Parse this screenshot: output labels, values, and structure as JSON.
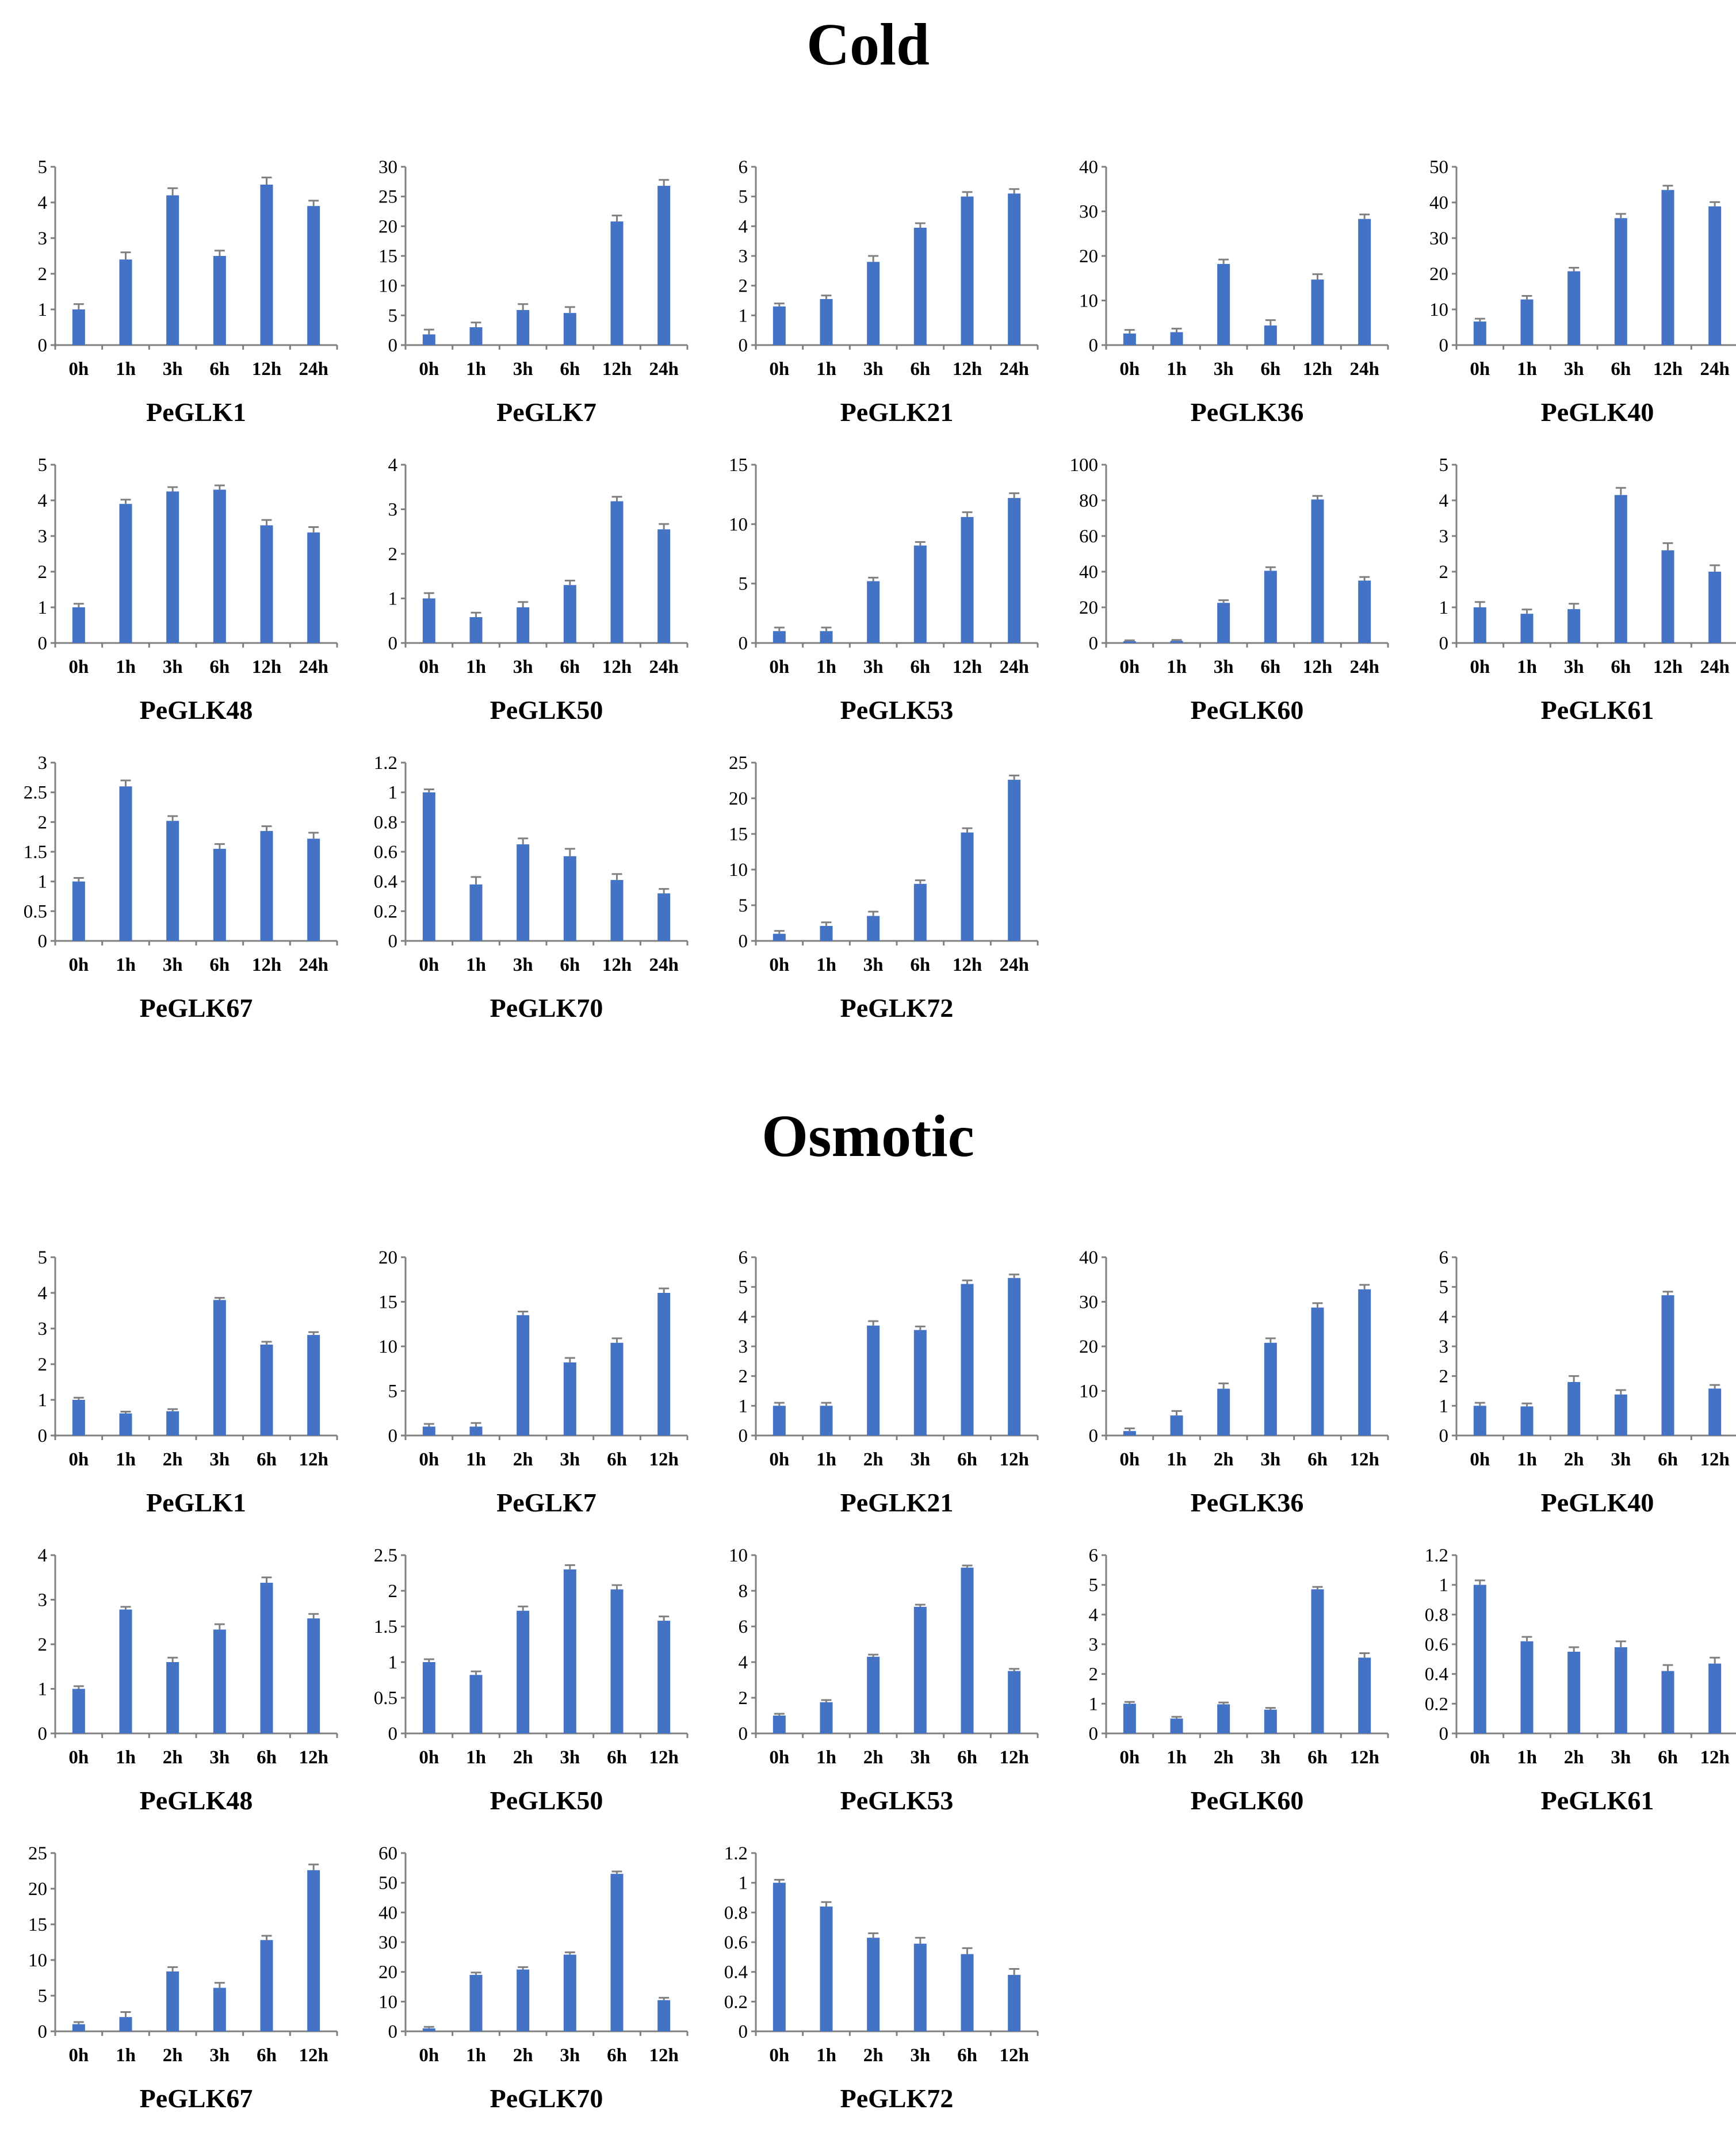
{
  "sections": [
    {
      "title": "Cold"
    },
    {
      "title": "Osmotic"
    }
  ],
  "colors": {
    "bar": "#4472C4",
    "axis": "#808080",
    "error": "#808080"
  },
  "chart_data": [
    {
      "section": 0,
      "type": "bar",
      "title": "PeGLK1",
      "categories": [
        "0h",
        "1h",
        "3h",
        "6h",
        "12h",
        "24h"
      ],
      "values": [
        1.0,
        2.4,
        4.2,
        2.5,
        4.5,
        3.9
      ],
      "errors": [
        0.15,
        0.2,
        0.2,
        0.15,
        0.2,
        0.15
      ],
      "ylim": [
        0,
        5
      ],
      "yticks": [
        0,
        1,
        2,
        3,
        4,
        5
      ],
      "yticklabels": [
        "0",
        "1",
        "2",
        "3",
        "4",
        "5"
      ]
    },
    {
      "section": 0,
      "type": "bar",
      "title": "PeGLK7",
      "categories": [
        "0h",
        "1h",
        "3h",
        "6h",
        "12h",
        "24h"
      ],
      "values": [
        1.8,
        3.0,
        5.9,
        5.4,
        20.8,
        26.8
      ],
      "errors": [
        0.8,
        0.8,
        1.0,
        1.0,
        1.0,
        1.0
      ],
      "ylim": [
        0,
        30
      ],
      "yticks": [
        0,
        5,
        10,
        15,
        20,
        25,
        30
      ],
      "yticklabels": [
        "0",
        "5",
        "10",
        "15",
        "20",
        "25",
        "30"
      ]
    },
    {
      "section": 0,
      "type": "bar",
      "title": "PeGLK21",
      "categories": [
        "0h",
        "1h",
        "3h",
        "6h",
        "12h",
        "24h"
      ],
      "values": [
        1.3,
        1.55,
        2.8,
        3.95,
        5.0,
        5.1
      ],
      "errors": [
        0.1,
        0.12,
        0.2,
        0.15,
        0.15,
        0.15
      ],
      "ylim": [
        0,
        6
      ],
      "yticks": [
        0,
        1,
        2,
        3,
        4,
        5,
        6
      ],
      "yticklabels": [
        "0",
        "1",
        "2",
        "3",
        "4",
        "5",
        "6"
      ]
    },
    {
      "section": 0,
      "type": "bar",
      "title": "PeGLK36",
      "categories": [
        "0h",
        "1h",
        "3h",
        "6h",
        "12h",
        "24h"
      ],
      "values": [
        2.6,
        2.9,
        18.2,
        4.4,
        14.7,
        28.3
      ],
      "errors": [
        0.8,
        0.8,
        1.0,
        1.2,
        1.2,
        1.0
      ],
      "ylim": [
        0,
        40
      ],
      "yticks": [
        0,
        10,
        20,
        30,
        40
      ],
      "yticklabels": [
        "0",
        "10",
        "20",
        "30",
        "40"
      ]
    },
    {
      "section": 0,
      "type": "bar",
      "title": "PeGLK40",
      "categories": [
        "0h",
        "1h",
        "3h",
        "6h",
        "12h",
        "24h"
      ],
      "values": [
        6.6,
        12.8,
        20.7,
        35.6,
        43.5,
        38.9
      ],
      "errors": [
        0.8,
        1.0,
        1.0,
        1.2,
        1.2,
        1.2
      ],
      "ylim": [
        0,
        50
      ],
      "yticks": [
        0,
        10,
        20,
        30,
        40,
        50
      ],
      "yticklabels": [
        "0",
        "10",
        "20",
        "30",
        "40",
        "50"
      ]
    },
    {
      "section": 0,
      "type": "bar",
      "title": "PeGLK48",
      "categories": [
        "0h",
        "1h",
        "3h",
        "6h",
        "12h",
        "24h"
      ],
      "values": [
        1.0,
        3.9,
        4.25,
        4.3,
        3.3,
        3.1
      ],
      "errors": [
        0.1,
        0.12,
        0.12,
        0.12,
        0.15,
        0.15
      ],
      "ylim": [
        0,
        5
      ],
      "yticks": [
        0,
        1,
        2,
        3,
        4,
        5
      ],
      "yticklabels": [
        "0",
        "1",
        "2",
        "3",
        "4",
        "5"
      ]
    },
    {
      "section": 0,
      "type": "bar",
      "title": "PeGLK50",
      "categories": [
        "0h",
        "1h",
        "3h",
        "6h",
        "12h",
        "24h"
      ],
      "values": [
        1.0,
        0.58,
        0.8,
        1.3,
        3.18,
        2.55
      ],
      "errors": [
        0.12,
        0.1,
        0.12,
        0.1,
        0.1,
        0.12
      ],
      "ylim": [
        0,
        4
      ],
      "yticks": [
        0,
        1,
        2,
        3,
        4
      ],
      "yticklabels": [
        "0",
        "1",
        "2",
        "3",
        "4"
      ]
    },
    {
      "section": 0,
      "type": "bar",
      "title": "PeGLK53",
      "categories": [
        "0h",
        "1h",
        "3h",
        "6h",
        "12h",
        "24h"
      ],
      "values": [
        1.0,
        1.0,
        5.2,
        8.2,
        10.6,
        12.2
      ],
      "errors": [
        0.3,
        0.3,
        0.3,
        0.3,
        0.4,
        0.4
      ],
      "ylim": [
        0,
        15
      ],
      "yticks": [
        0,
        5,
        10,
        15
      ],
      "yticklabels": [
        "0",
        "5",
        "10",
        "15"
      ]
    },
    {
      "section": 0,
      "type": "bar",
      "title": "PeGLK60",
      "categories": [
        "0h",
        "1h",
        "3h",
        "6h",
        "12h",
        "24h"
      ],
      "values": [
        1.0,
        1.2,
        22.5,
        40.5,
        80.5,
        35.0
      ],
      "errors": [
        0.5,
        0.5,
        1.5,
        2.0,
        2.0,
        2.0
      ],
      "ylim": [
        0,
        100
      ],
      "yticks": [
        0,
        20,
        40,
        60,
        80,
        100
      ],
      "yticklabels": [
        "0",
        "20",
        "40",
        "60",
        "80",
        "100"
      ]
    },
    {
      "section": 0,
      "type": "bar",
      "title": "PeGLK61",
      "categories": [
        "0h",
        "1h",
        "3h",
        "6h",
        "12h",
        "24h"
      ],
      "values": [
        1.0,
        0.82,
        0.95,
        4.15,
        2.6,
        2.0
      ],
      "errors": [
        0.15,
        0.12,
        0.15,
        0.2,
        0.2,
        0.18
      ],
      "ylim": [
        0,
        5
      ],
      "yticks": [
        0,
        1,
        2,
        3,
        4,
        5
      ],
      "yticklabels": [
        "0",
        "1",
        "2",
        "3",
        "4",
        "5"
      ]
    },
    {
      "section": 0,
      "type": "bar",
      "title": "PeGLK67",
      "categories": [
        "0h",
        "1h",
        "3h",
        "6h",
        "12h",
        "24h"
      ],
      "values": [
        1.0,
        2.6,
        2.02,
        1.55,
        1.85,
        1.72
      ],
      "errors": [
        0.06,
        0.1,
        0.08,
        0.08,
        0.08,
        0.1
      ],
      "ylim": [
        0,
        3
      ],
      "yticks": [
        0,
        0.5,
        1,
        1.5,
        2,
        2.5,
        3
      ],
      "yticklabels": [
        "0",
        "0.5",
        "1",
        "1.5",
        "2",
        "2.5",
        "3"
      ]
    },
    {
      "section": 0,
      "type": "bar",
      "title": "PeGLK70",
      "categories": [
        "0h",
        "1h",
        "3h",
        "6h",
        "12h",
        "24h"
      ],
      "values": [
        1.0,
        0.38,
        0.65,
        0.57,
        0.41,
        0.32
      ],
      "errors": [
        0.02,
        0.05,
        0.04,
        0.05,
        0.04,
        0.03
      ],
      "ylim": [
        0,
        1.2
      ],
      "yticks": [
        0,
        0.2,
        0.4,
        0.6,
        0.8,
        1,
        1.2
      ],
      "yticklabels": [
        "0",
        "0.2",
        "0.4",
        "0.6",
        "0.8",
        "1",
        "1.2"
      ]
    },
    {
      "section": 0,
      "type": "bar",
      "title": "PeGLK72",
      "categories": [
        "0h",
        "1h",
        "3h",
        "6h",
        "12h",
        "24h"
      ],
      "values": [
        1.0,
        2.1,
        3.5,
        8.0,
        15.2,
        22.6
      ],
      "errors": [
        0.4,
        0.5,
        0.6,
        0.5,
        0.6,
        0.6
      ],
      "ylim": [
        0,
        25
      ],
      "yticks": [
        0,
        5,
        10,
        15,
        20,
        25
      ],
      "yticklabels": [
        "0",
        "5",
        "10",
        "15",
        "20",
        "25"
      ]
    },
    {
      "section": 1,
      "type": "bar",
      "title": "PeGLK1",
      "categories": [
        "0h",
        "1h",
        "2h",
        "3h",
        "6h",
        "12h"
      ],
      "values": [
        1.0,
        0.62,
        0.68,
        3.8,
        2.55,
        2.82
      ],
      "errors": [
        0.06,
        0.05,
        0.06,
        0.06,
        0.08,
        0.08
      ],
      "ylim": [
        0,
        5
      ],
      "yticks": [
        0,
        1,
        2,
        3,
        4,
        5
      ],
      "yticklabels": [
        "0",
        "1",
        "2",
        "3",
        "4",
        "5"
      ]
    },
    {
      "section": 1,
      "type": "bar",
      "title": "PeGLK7",
      "categories": [
        "0h",
        "1h",
        "2h",
        "3h",
        "6h",
        "12h"
      ],
      "values": [
        1.0,
        1.0,
        13.5,
        8.2,
        10.4,
        16.0
      ],
      "errors": [
        0.3,
        0.4,
        0.4,
        0.5,
        0.5,
        0.5
      ],
      "ylim": [
        0,
        20
      ],
      "yticks": [
        0,
        5,
        10,
        15,
        20
      ],
      "yticklabels": [
        "0",
        "5",
        "10",
        "15",
        "20"
      ]
    },
    {
      "section": 1,
      "type": "bar",
      "title": "PeGLK21",
      "categories": [
        "0h",
        "1h",
        "2h",
        "3h",
        "6h",
        "12h"
      ],
      "values": [
        1.0,
        1.0,
        3.7,
        3.55,
        5.1,
        5.3
      ],
      "errors": [
        0.1,
        0.1,
        0.15,
        0.12,
        0.12,
        0.12
      ],
      "ylim": [
        0,
        6
      ],
      "yticks": [
        0,
        1,
        2,
        3,
        4,
        5,
        6
      ],
      "yticklabels": [
        "0",
        "1",
        "2",
        "3",
        "4",
        "5",
        "6"
      ]
    },
    {
      "section": 1,
      "type": "bar",
      "title": "PeGLK36",
      "categories": [
        "0h",
        "1h",
        "2h",
        "3h",
        "6h",
        "12h"
      ],
      "values": [
        1.0,
        4.5,
        10.5,
        20.8,
        28.7,
        32.8
      ],
      "errors": [
        0.6,
        1.0,
        1.2,
        1.0,
        1.0,
        1.0
      ],
      "ylim": [
        0,
        40
      ],
      "yticks": [
        0,
        10,
        20,
        30,
        40
      ],
      "yticklabels": [
        "0",
        "10",
        "20",
        "30",
        "40"
      ]
    },
    {
      "section": 1,
      "type": "bar",
      "title": "PeGLK40",
      "categories": [
        "0h",
        "1h",
        "2h",
        "3h",
        "6h",
        "12h"
      ],
      "values": [
        1.0,
        0.98,
        1.8,
        1.38,
        4.72,
        1.58
      ],
      "errors": [
        0.1,
        0.1,
        0.2,
        0.15,
        0.12,
        0.12
      ],
      "ylim": [
        0,
        6
      ],
      "yticks": [
        0,
        1,
        2,
        3,
        4,
        5,
        6
      ],
      "yticklabels": [
        "0",
        "1",
        "2",
        "3",
        "4",
        "5",
        "6"
      ]
    },
    {
      "section": 1,
      "type": "bar",
      "title": "PeGLK48",
      "categories": [
        "0h",
        "1h",
        "2h",
        "3h",
        "6h",
        "12h"
      ],
      "values": [
        1.0,
        2.78,
        1.6,
        2.33,
        3.38,
        2.58
      ],
      "errors": [
        0.06,
        0.06,
        0.1,
        0.12,
        0.12,
        0.1
      ],
      "ylim": [
        0,
        4
      ],
      "yticks": [
        0,
        1,
        2,
        3,
        4
      ],
      "yticklabels": [
        "0",
        "1",
        "2",
        "3",
        "4"
      ]
    },
    {
      "section": 1,
      "type": "bar",
      "title": "PeGLK50",
      "categories": [
        "0h",
        "1h",
        "2h",
        "3h",
        "6h",
        "12h"
      ],
      "values": [
        1.0,
        0.82,
        1.72,
        2.3,
        2.02,
        1.58
      ],
      "errors": [
        0.04,
        0.05,
        0.06,
        0.06,
        0.06,
        0.06
      ],
      "ylim": [
        0,
        2.5
      ],
      "yticks": [
        0,
        0.5,
        1,
        1.5,
        2,
        2.5
      ],
      "yticklabels": [
        "0",
        "0.5",
        "1",
        "1.5",
        "2",
        "2.5"
      ]
    },
    {
      "section": 1,
      "type": "bar",
      "title": "PeGLK53",
      "categories": [
        "0h",
        "1h",
        "2h",
        "3h",
        "6h",
        "12h"
      ],
      "values": [
        1.0,
        1.75,
        4.3,
        7.1,
        9.3,
        3.5
      ],
      "errors": [
        0.1,
        0.12,
        0.12,
        0.12,
        0.12,
        0.12
      ],
      "ylim": [
        0,
        10
      ],
      "yticks": [
        0,
        2,
        4,
        6,
        8,
        10
      ],
      "yticklabels": [
        "0",
        "2",
        "4",
        "6",
        "8",
        "10"
      ]
    },
    {
      "section": 1,
      "type": "bar",
      "title": "PeGLK60",
      "categories": [
        "0h",
        "1h",
        "2h",
        "3h",
        "6h",
        "12h"
      ],
      "values": [
        1.0,
        0.5,
        0.98,
        0.8,
        4.85,
        2.55
      ],
      "errors": [
        0.06,
        0.06,
        0.06,
        0.06,
        0.08,
        0.15
      ],
      "ylim": [
        0,
        6
      ],
      "yticks": [
        0,
        1,
        2,
        3,
        4,
        5,
        6
      ],
      "yticklabels": [
        "0",
        "1",
        "2",
        "3",
        "4",
        "5",
        "6"
      ]
    },
    {
      "section": 1,
      "type": "bar",
      "title": "PeGLK61",
      "categories": [
        "0h",
        "1h",
        "2h",
        "3h",
        "6h",
        "12h"
      ],
      "values": [
        1.0,
        0.62,
        0.55,
        0.58,
        0.42,
        0.47
      ],
      "errors": [
        0.03,
        0.03,
        0.03,
        0.04,
        0.04,
        0.04
      ],
      "ylim": [
        0,
        1.2
      ],
      "yticks": [
        0,
        0.2,
        0.4,
        0.6,
        0.8,
        1,
        1.2
      ],
      "yticklabels": [
        "0",
        "0.2",
        "0.4",
        "0.6",
        "0.8",
        "1",
        "1.2"
      ]
    },
    {
      "section": 1,
      "type": "bar",
      "title": "PeGLK67",
      "categories": [
        "0h",
        "1h",
        "2h",
        "3h",
        "6h",
        "12h"
      ],
      "values": [
        1.0,
        2.0,
        8.4,
        6.1,
        12.8,
        22.6
      ],
      "errors": [
        0.3,
        0.7,
        0.6,
        0.7,
        0.6,
        0.8
      ],
      "ylim": [
        0,
        25
      ],
      "yticks": [
        0,
        5,
        10,
        15,
        20,
        25
      ],
      "yticklabels": [
        "0",
        "5",
        "10",
        "15",
        "20",
        "25"
      ]
    },
    {
      "section": 1,
      "type": "bar",
      "title": "PeGLK70",
      "categories": [
        "0h",
        "1h",
        "2h",
        "3h",
        "6h",
        "12h"
      ],
      "values": [
        1.0,
        19.0,
        20.8,
        25.8,
        53.0,
        10.5
      ],
      "errors": [
        0.5,
        0.8,
        0.8,
        0.8,
        0.8,
        0.8
      ],
      "ylim": [
        0,
        60
      ],
      "yticks": [
        0,
        10,
        20,
        30,
        40,
        50,
        60
      ],
      "yticklabels": [
        "0",
        "10",
        "20",
        "30",
        "40",
        "50",
        "60"
      ]
    },
    {
      "section": 1,
      "type": "bar",
      "title": "PeGLK72",
      "categories": [
        "0h",
        "1h",
        "2h",
        "3h",
        "6h",
        "12h"
      ],
      "values": [
        1.0,
        0.84,
        0.63,
        0.59,
        0.52,
        0.38
      ],
      "errors": [
        0.02,
        0.03,
        0.03,
        0.04,
        0.04,
        0.04
      ],
      "ylim": [
        0,
        1.2
      ],
      "yticks": [
        0,
        0.2,
        0.4,
        0.6,
        0.8,
        1,
        1.2
      ],
      "yticklabels": [
        "0",
        "0.2",
        "0.4",
        "0.6",
        "0.8",
        "1",
        "1.2"
      ]
    }
  ]
}
